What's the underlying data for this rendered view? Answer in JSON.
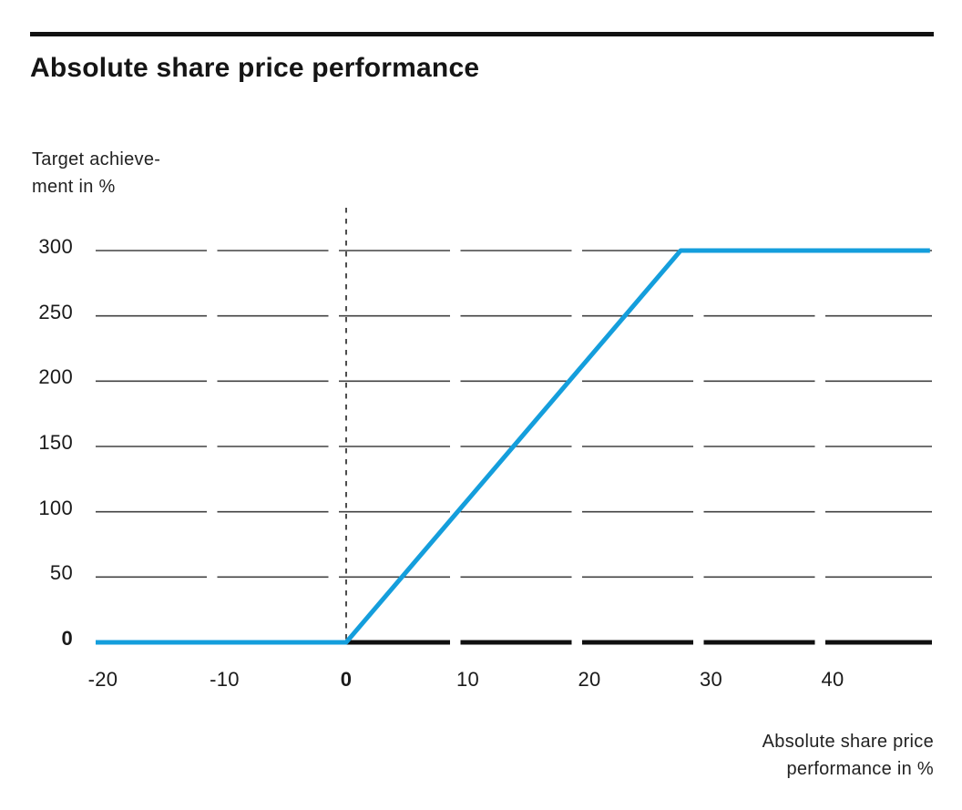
{
  "page": {
    "title": "Absolute share price performance"
  },
  "axis_titles": {
    "y_line1": "Target achieve-",
    "y_line2": "ment in %",
    "x_line1": "Absolute share price",
    "x_line2": "performance in %"
  },
  "chart_data": {
    "type": "line",
    "title": "Absolute share price performance",
    "xlabel": "Absolute share price performance in %",
    "ylabel": "Target achievement in %",
    "x_ticks": [
      -20,
      -10,
      0,
      10,
      20,
      30,
      40
    ],
    "y_ticks": [
      0,
      50,
      100,
      150,
      200,
      250,
      300
    ],
    "bold_tick_value": 0,
    "xlim": [
      -21,
      48
    ],
    "ylim": [
      0,
      330
    ],
    "grid": "horizontal dashed gridlines at each y tick; dashed vertical reference line at x = 0; thick black baseline at y = 0 for x >= 0",
    "legend": "none",
    "cap_value": 300,
    "series": [
      {
        "name": "Target achievement",
        "color": "#149EDC",
        "points": [
          {
            "x": -21,
            "y": 0
          },
          {
            "x": 0,
            "y": 0
          },
          {
            "x": 27.5,
            "y": 300
          },
          {
            "x": 48,
            "y": 300
          }
        ],
        "description": "0% payout for negative absolute share price performance; linear increase from 0% at 0% performance up to the 300% cap reached at approx. +27.5%; flat at 300% thereafter."
      }
    ],
    "colors": {
      "line": "#149EDC",
      "baseline": "#101010",
      "grid": "#424242",
      "dashed_reference": "#3a3a3a",
      "text": "#1a1a1a"
    }
  }
}
